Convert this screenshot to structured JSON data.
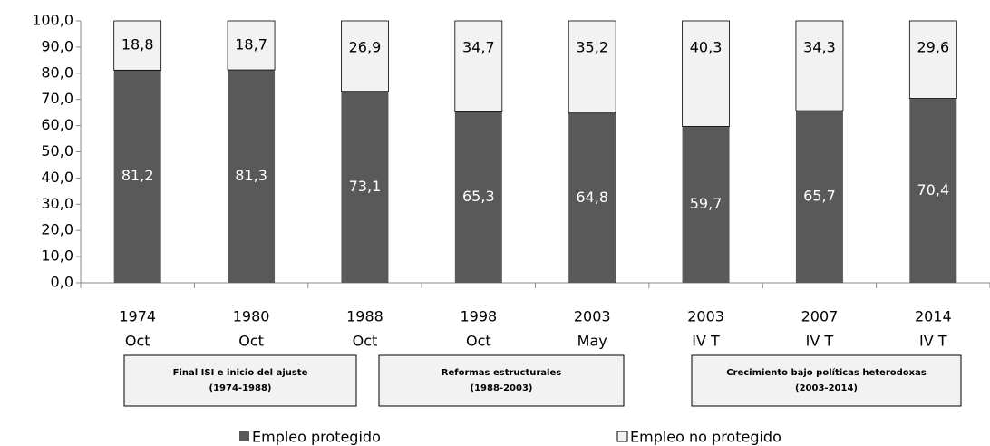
{
  "chart_data": {
    "type": "stacked_bar",
    "categories": [
      [
        "1974",
        "Oct"
      ],
      [
        "1980",
        "Oct"
      ],
      [
        "1988",
        "Oct"
      ],
      [
        "1998",
        "Oct"
      ],
      [
        "2003",
        "May"
      ],
      [
        "2003",
        "IV T"
      ],
      [
        "2007",
        "IV T"
      ],
      [
        "2014",
        "IV T"
      ]
    ],
    "series": [
      {
        "name": "Empleo protegido",
        "color": "#595959",
        "label_color": "#ffffff",
        "values": [
          81.2,
          81.3,
          73.1,
          65.3,
          64.8,
          59.7,
          65.7,
          70.4
        ],
        "value_labels": [
          "81,2",
          "81,3",
          "73,1",
          "65,3",
          "64,8",
          "59,7",
          "65,7",
          "70,4"
        ]
      },
      {
        "name": "Empleo no protegido",
        "color": "#f2f2f2",
        "label_color": "#000000",
        "values": [
          18.8,
          18.7,
          26.9,
          34.7,
          35.2,
          40.3,
          34.3,
          29.6
        ],
        "value_labels": [
          "18,8",
          "18,7",
          "26,9",
          "34,7",
          "35,2",
          "40,3",
          "34,3",
          "29,6"
        ]
      }
    ],
    "ylim": [
      0,
      100
    ],
    "yticks": [
      {
        "value": 0,
        "label": "0,0"
      },
      {
        "value": 10,
        "label": "10,0"
      },
      {
        "value": 20,
        "label": "20,0"
      },
      {
        "value": 30,
        "label": "30,0"
      },
      {
        "value": 40,
        "label": "40,0"
      },
      {
        "value": 50,
        "label": "50,0"
      },
      {
        "value": 60,
        "label": "60,0"
      },
      {
        "value": 70,
        "label": "70,0"
      },
      {
        "value": 80,
        "label": "80,0"
      },
      {
        "value": 90,
        "label": "90,0"
      },
      {
        "value": 100,
        "label": "100,0"
      }
    ],
    "periods": [
      {
        "label": "Final ISI e inicio del ajuste",
        "years": "(1974-1988)"
      },
      {
        "label": "Reformas estructurales",
        "years": "(1988-2003)"
      },
      {
        "label": "Crecimiento bajo políticas  heterodoxas",
        "years": "(2003-2014)"
      }
    ]
  }
}
